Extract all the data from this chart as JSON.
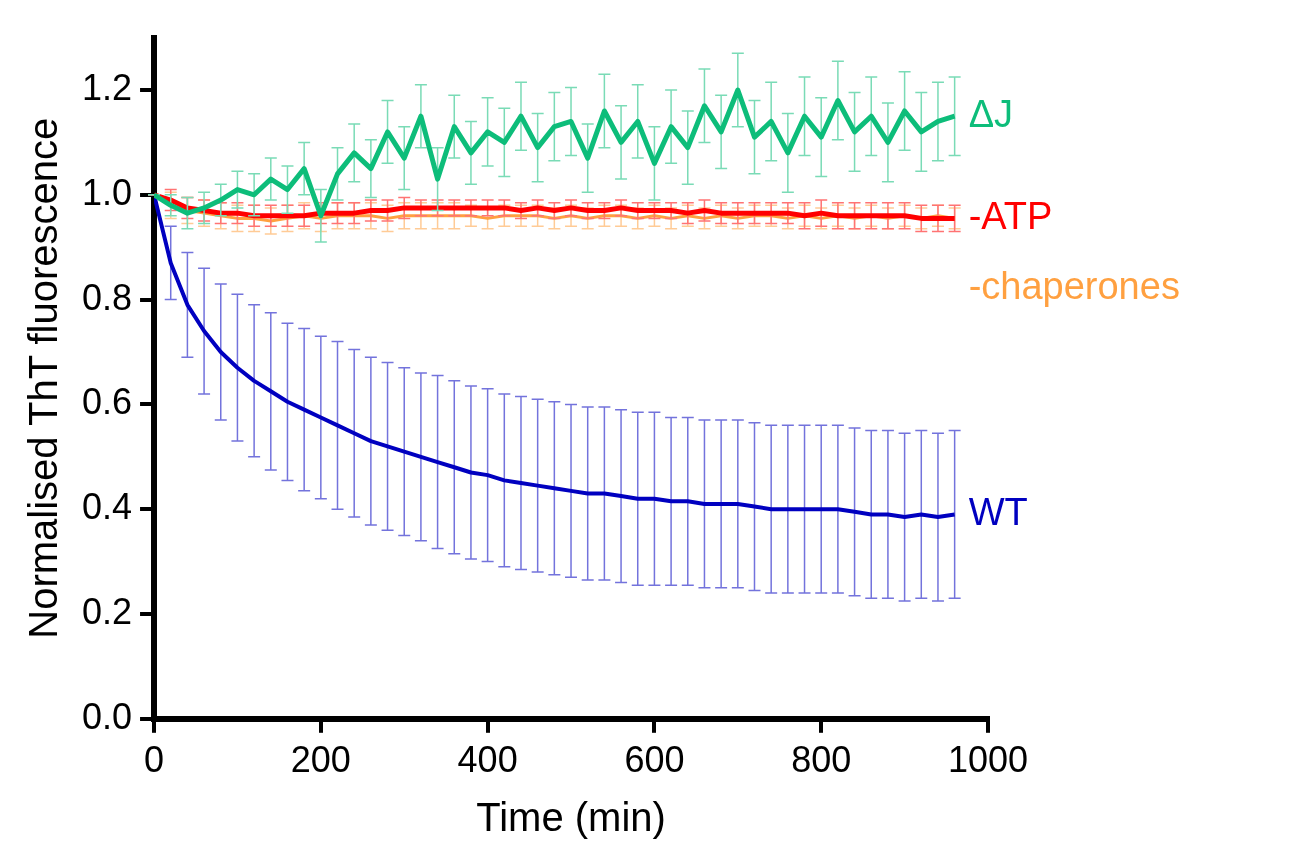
{
  "chart_data": {
    "type": "line",
    "xlabel": "Time (min)",
    "ylabel": "Normalised ThT fluorescence",
    "xlim": [
      0,
      1000
    ],
    "xticks": [
      0,
      200,
      400,
      600,
      800,
      1000
    ],
    "ylim": [
      0,
      1.3
    ],
    "yticks": [
      {
        "value": 0,
        "label": "0.0"
      },
      {
        "value": 0.2,
        "label": "0.2"
      },
      {
        "value": 0.4,
        "label": "0.4"
      },
      {
        "value": 0.6,
        "label": "0.6"
      },
      {
        "value": 0.8,
        "label": "0.8"
      },
      {
        "value": 1.0,
        "label": "1.0"
      },
      {
        "value": 1.2,
        "label": "1.2"
      }
    ],
    "grid": false,
    "legend": false,
    "marker": "none",
    "line_style": "solid",
    "x": [
      0,
      20,
      40,
      60,
      80,
      100,
      120,
      140,
      160,
      180,
      200,
      220,
      240,
      260,
      280,
      300,
      320,
      340,
      360,
      380,
      400,
      420,
      440,
      460,
      480,
      500,
      520,
      540,
      560,
      580,
      600,
      620,
      640,
      660,
      680,
      700,
      720,
      740,
      760,
      780,
      800,
      820,
      840,
      860,
      880,
      900,
      920,
      940,
      960
    ],
    "series": [
      {
        "name": "WT",
        "color": "#0000c0",
        "values": [
          1.0,
          0.87,
          0.79,
          0.74,
          0.7,
          0.67,
          0.645,
          0.625,
          0.605,
          0.59,
          0.575,
          0.56,
          0.545,
          0.53,
          0.52,
          0.51,
          0.5,
          0.49,
          0.48,
          0.47,
          0.465,
          0.455,
          0.45,
          0.445,
          0.44,
          0.435,
          0.43,
          0.43,
          0.425,
          0.42,
          0.42,
          0.415,
          0.415,
          0.41,
          0.41,
          0.41,
          0.405,
          0.4,
          0.4,
          0.4,
          0.4,
          0.4,
          0.395,
          0.39,
          0.39,
          0.385,
          0.39,
          0.385,
          0.39
        ],
        "errors": [
          0,
          0.07,
          0.1,
          0.12,
          0.13,
          0.14,
          0.145,
          0.15,
          0.15,
          0.155,
          0.155,
          0.16,
          0.16,
          0.16,
          0.16,
          0.16,
          0.16,
          0.165,
          0.165,
          0.165,
          0.165,
          0.165,
          0.165,
          0.165,
          0.165,
          0.165,
          0.165,
          0.165,
          0.165,
          0.165,
          0.165,
          0.16,
          0.16,
          0.16,
          0.16,
          0.16,
          0.16,
          0.16,
          0.16,
          0.16,
          0.16,
          0.16,
          0.16,
          0.16,
          0.16,
          0.16,
          0.16,
          0.16,
          0.16
        ]
      },
      {
        "name": "-chaperones",
        "color": "#ffa040",
        "values": [
          1.0,
          0.98,
          0.97,
          0.965,
          0.96,
          0.955,
          0.955,
          0.95,
          0.955,
          0.96,
          0.955,
          0.96,
          0.96,
          0.96,
          0.955,
          0.96,
          0.96,
          0.96,
          0.96,
          0.96,
          0.955,
          0.96,
          0.96,
          0.96,
          0.955,
          0.96,
          0.955,
          0.96,
          0.96,
          0.955,
          0.96,
          0.955,
          0.96,
          0.955,
          0.96,
          0.955,
          0.96,
          0.96,
          0.955,
          0.96,
          0.955,
          0.96,
          0.955,
          0.96,
          0.955,
          0.96,
          0.955,
          0.96,
          0.955
        ],
        "errors": [
          0,
          0.025,
          0.025,
          0.025,
          0.025,
          0.025,
          0.025,
          0.025,
          0.025,
          0.025,
          0.025,
          0.025,
          0.025,
          0.025,
          0.025,
          0.025,
          0.025,
          0.025,
          0.025,
          0.02,
          0.02,
          0.02,
          0.02,
          0.02,
          0.02,
          0.02,
          0.02,
          0.02,
          0.02,
          0.02,
          0.02,
          0.02,
          0.02,
          0.02,
          0.02,
          0.02,
          0.02,
          0.02,
          0.02,
          0.02,
          0.02,
          0.02,
          0.02,
          0.02,
          0.02,
          0.02,
          0.02,
          0.02,
          0.02
        ]
      },
      {
        "name": "-ATP",
        "color": "#ff0000",
        "values": [
          1.0,
          0.99,
          0.975,
          0.97,
          0.965,
          0.965,
          0.96,
          0.96,
          0.96,
          0.96,
          0.965,
          0.965,
          0.965,
          0.97,
          0.97,
          0.975,
          0.975,
          0.975,
          0.975,
          0.975,
          0.975,
          0.975,
          0.97,
          0.975,
          0.97,
          0.975,
          0.97,
          0.97,
          0.975,
          0.97,
          0.97,
          0.97,
          0.965,
          0.97,
          0.965,
          0.965,
          0.965,
          0.965,
          0.965,
          0.96,
          0.965,
          0.96,
          0.96,
          0.96,
          0.96,
          0.96,
          0.955,
          0.955,
          0.955
        ],
        "errors": [
          0,
          0.02,
          0.02,
          0.02,
          0.02,
          0.02,
          0.02,
          0.02,
          0.02,
          0.02,
          0.02,
          0.02,
          0.02,
          0.02,
          0.02,
          0.02,
          0.015,
          0.015,
          0.015,
          0.015,
          0.015,
          0.015,
          0.015,
          0.015,
          0.015,
          0.015,
          0.015,
          0.015,
          0.015,
          0.015,
          0.015,
          0.015,
          0.02,
          0.02,
          0.02,
          0.02,
          0.02,
          0.02,
          0.02,
          0.025,
          0.025,
          0.025,
          0.025,
          0.025,
          0.025,
          0.025,
          0.025,
          0.025,
          0.025
        ]
      },
      {
        "name": "ΔJ",
        "color": "#0dbd7a",
        "values": [
          1.0,
          0.98,
          0.965,
          0.975,
          0.99,
          1.01,
          1.0,
          1.03,
          1.01,
          1.05,
          0.96,
          1.04,
          1.08,
          1.05,
          1.12,
          1.07,
          1.15,
          1.03,
          1.13,
          1.08,
          1.12,
          1.1,
          1.15,
          1.09,
          1.13,
          1.14,
          1.07,
          1.16,
          1.1,
          1.14,
          1.06,
          1.13,
          1.09,
          1.17,
          1.12,
          1.2,
          1.11,
          1.14,
          1.08,
          1.15,
          1.11,
          1.18,
          1.12,
          1.15,
          1.1,
          1.16,
          1.12,
          1.14,
          1.15
        ],
        "errors": [
          0,
          0.02,
          0.03,
          0.03,
          0.03,
          0.035,
          0.04,
          0.04,
          0.045,
          0.05,
          0.05,
          0.05,
          0.055,
          0.055,
          0.06,
          0.06,
          0.06,
          0.06,
          0.06,
          0.06,
          0.065,
          0.065,
          0.065,
          0.065,
          0.065,
          0.065,
          0.065,
          0.07,
          0.07,
          0.07,
          0.07,
          0.07,
          0.07,
          0.07,
          0.07,
          0.07,
          0.07,
          0.075,
          0.075,
          0.075,
          0.075,
          0.075,
          0.075,
          0.075,
          0.075,
          0.075,
          0.075,
          0.075,
          0.075
        ]
      }
    ]
  }
}
